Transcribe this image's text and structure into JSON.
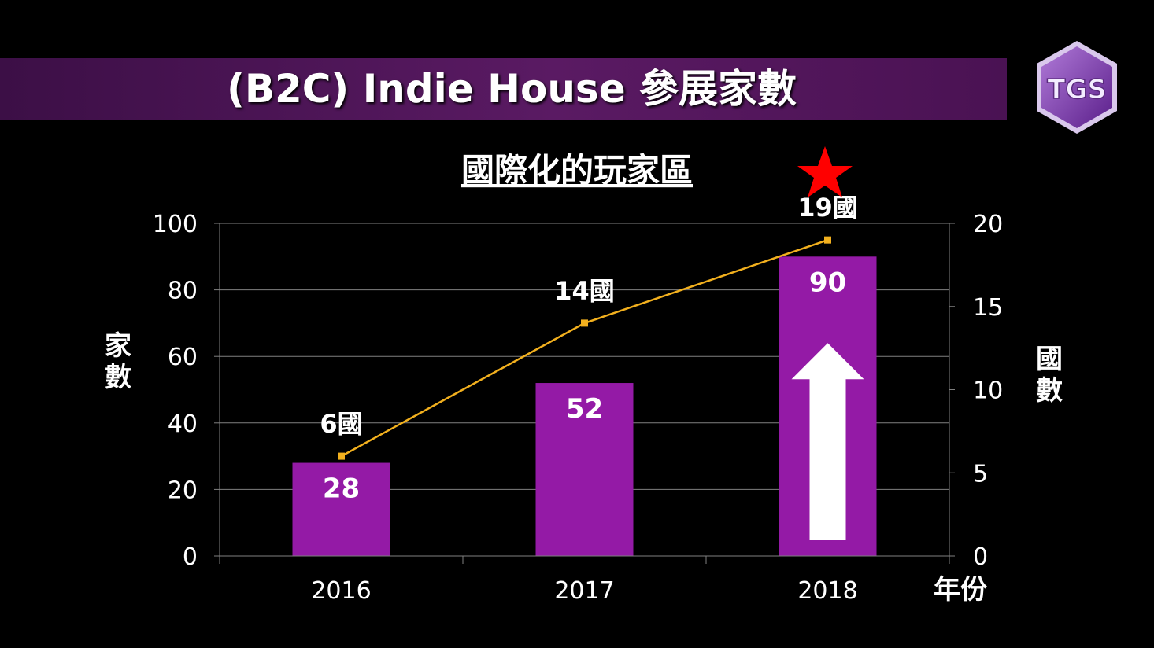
{
  "slide": {
    "title": "(B2C) Indie House 參展家數",
    "logo_text": "TGS",
    "star_icon": "star-icon",
    "arrow_icon": "up-arrow-icon"
  },
  "colors": {
    "bar": "#941aa6",
    "line": "#f2b01e",
    "banner": "#4a1253",
    "star": "#ff0000",
    "gridline": "#808080"
  },
  "chart_data": {
    "type": "bar",
    "title": "國際化的玩家區",
    "categories": [
      "2016",
      "2017",
      "2018"
    ],
    "series": [
      {
        "type": "bar",
        "axis": "left",
        "values": [
          28,
          52,
          90
        ],
        "labels": [
          "28",
          "52",
          "90"
        ]
      },
      {
        "type": "line",
        "axis": "right",
        "values": [
          6,
          14,
          19
        ],
        "labels": [
          "6國",
          "14國",
          "19國"
        ]
      }
    ],
    "ylabel_left": "家數",
    "ylabel_right": "國數",
    "xlabel": "年份",
    "ylim_left": [
      0,
      100
    ],
    "ylim_right": [
      0,
      20
    ],
    "yticks_left": [
      "0",
      "20",
      "40",
      "60",
      "80",
      "100"
    ],
    "yticks_right": [
      "0",
      "5",
      "10",
      "15",
      "20"
    ],
    "grid": true,
    "legend": "none"
  }
}
